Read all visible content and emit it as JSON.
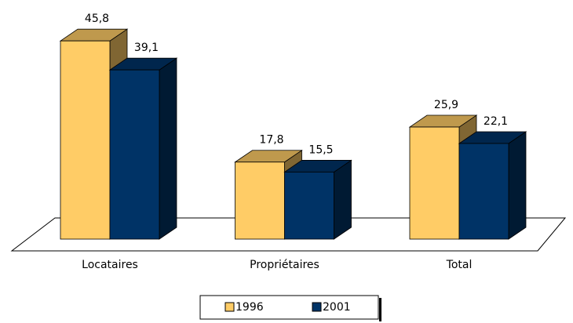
{
  "chart_data": {
    "type": "bar3d",
    "categories": [
      "Locataires",
      "Propriétaires",
      "Total"
    ],
    "series": [
      {
        "name": "1996",
        "color": "#FFCC66",
        "values": [
          45.8,
          17.8,
          25.9
        ],
        "value_labels": [
          "45,8",
          "17,8",
          "25,9"
        ]
      },
      {
        "name": "2001",
        "color": "#003366",
        "values": [
          39.1,
          15.5,
          22.1
        ],
        "value_labels": [
          "39,1",
          "15,5",
          "22,1"
        ]
      }
    ],
    "legend": "bottom"
  }
}
